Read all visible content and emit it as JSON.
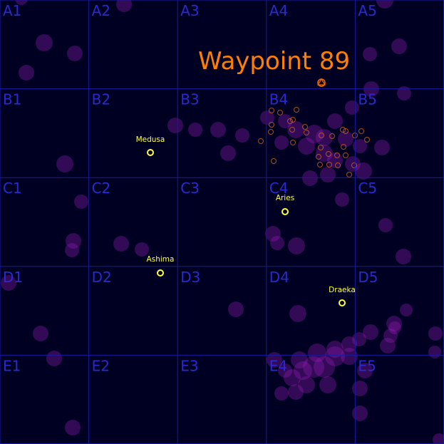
{
  "map": {
    "title": "Waypoint 89",
    "grid": {
      "rows": [
        "A",
        "B",
        "C",
        "D",
        "E"
      ],
      "cols": [
        "1",
        "2",
        "3",
        "4",
        "5"
      ],
      "labels": [
        [
          "A1",
          "A2",
          "A3",
          "A4",
          "A5"
        ],
        [
          "B1",
          "B2",
          "B3",
          "B4",
          "B5"
        ],
        [
          "C1",
          "C2",
          "C3",
          "C4",
          "C5"
        ],
        [
          "D1",
          "D2",
          "D3",
          "D4",
          "D5"
        ],
        [
          "E1",
          "E2",
          "E3",
          "E4",
          "E5"
        ]
      ]
    },
    "waypoint": {
      "name": "Waypoint 89",
      "icon": "waypoint-marker-icon",
      "cell": "A4"
    },
    "locations": [
      {
        "name": "Medusa",
        "cell": "B2"
      },
      {
        "name": "Aries",
        "cell": "C4"
      },
      {
        "name": "Ashima",
        "cell": "C2"
      },
      {
        "name": "Draeka",
        "cell": "D4"
      }
    ],
    "colors": {
      "background": "#000022",
      "grid": "#1a1aa0",
      "grid_label": "#2a2ad0",
      "title": "#ff8000",
      "location": "#ffff40",
      "nebula": "#a020c0",
      "debris": "#c06020"
    }
  }
}
